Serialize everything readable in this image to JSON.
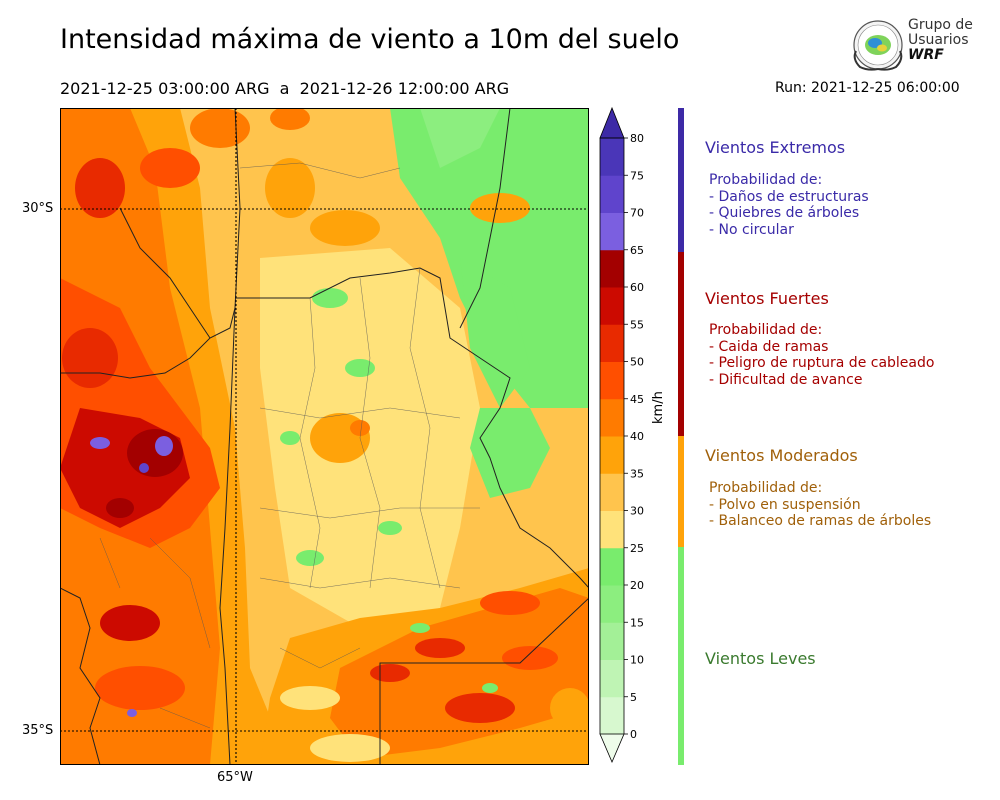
{
  "title": "Intensidad máxima de viento a 10m del suelo",
  "period": "2021-12-25 03:00:00 ARG  a  2021-12-26 12:00:00 ARG",
  "run": "Run: 2021-12-25 06:00:00",
  "logo": {
    "line1": "Grupo de",
    "line2": "Usuarios",
    "line3": "WRF"
  },
  "map": {
    "lat_labels": [
      "30°S",
      "35°S"
    ],
    "lon_labels": [
      "65°W"
    ]
  },
  "colorbar": {
    "unit": "km/h",
    "ticks": [
      "0",
      "5",
      "10",
      "15",
      "20",
      "25",
      "30",
      "35",
      "40",
      "45",
      "50",
      "55",
      "60",
      "65",
      "70",
      "75",
      "80"
    ],
    "colors": [
      "#eefcea",
      "#d7f8cf",
      "#bff4b4",
      "#a3f097",
      "#8cee7f",
      "#79ec6d",
      "#ffe27a",
      "#ffc44d",
      "#ffa30a",
      "#ff7b00",
      "#ff4f00",
      "#e82a00",
      "#cc0a00",
      "#a30000",
      "#7b5fe0",
      "#5f44cc",
      "#4a36b8",
      "#3d2aa6"
    ]
  },
  "legend": {
    "colors": {
      "extremos": "#3d2aa6",
      "fuertes": "#a30000",
      "moderados": "#ffa30a",
      "leves": "#79ec6d",
      "text_extremos": "#3a2aa8",
      "text_fuertes": "#a50000",
      "text_moderados": "#a0600a",
      "text_leves": "#3a7a2e"
    },
    "extremos": {
      "title": "Vientos Extremos",
      "items": [
        "Probabilidad de:",
        "- Daños de estructuras",
        "- Quiebres de árboles",
        "- No circular"
      ]
    },
    "fuertes": {
      "title": "Vientos Fuertes",
      "items": [
        "Probabilidad de:",
        "- Caida de ramas",
        "- Peligro de ruptura de cableado",
        "- Dificultad de avance"
      ]
    },
    "moderados": {
      "title": "Vientos Moderados",
      "items": [
        "Probabilidad de:",
        "- Polvo en suspensión",
        "- Balanceo de ramas de árboles"
      ]
    },
    "leves": {
      "title": "Vientos Leves"
    }
  }
}
